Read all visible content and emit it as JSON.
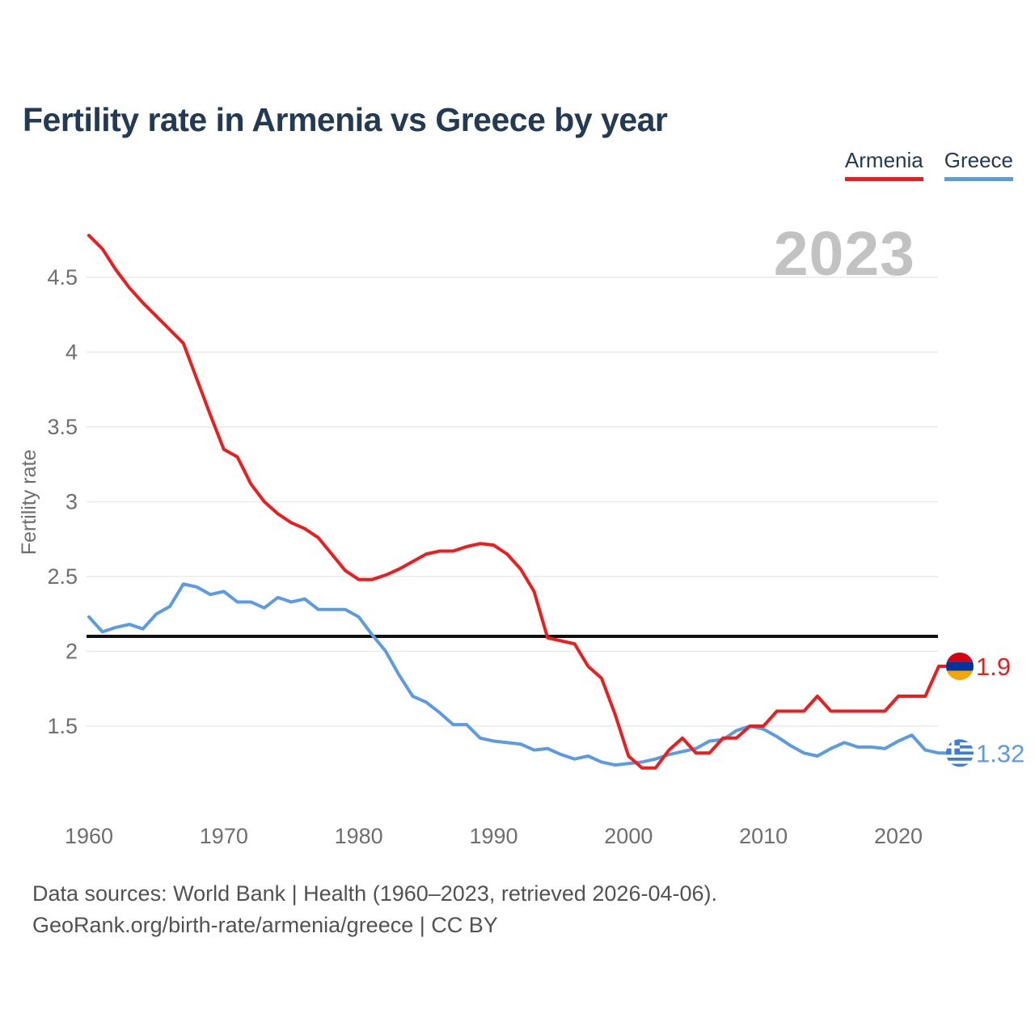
{
  "title": "Fertility rate in Armenia vs Greece by year",
  "legend": [
    {
      "label": "Armenia",
      "color": "#ee1c1c"
    },
    {
      "label": "Greece",
      "color": "#5b9be1"
    }
  ],
  "watermark": "2023",
  "end_labels": [
    {
      "series": "Armenia",
      "value": "1.9",
      "flag_icon": "armenia-flag-icon"
    },
    {
      "series": "Greece",
      "value": "1.32",
      "flag_icon": "greece-flag-icon"
    }
  ],
  "footer": {
    "line1": "Data sources: World Bank | Health (1960–2023, retrieved 2026-04-06).",
    "line2": "GeoRank.org/birth-rate/armenia/greece | CC BY"
  },
  "chart_data": {
    "type": "line",
    "title": "Fertility rate in Armenia vs Greece by year",
    "xlabel": "",
    "ylabel": "Fertility rate",
    "x": [
      1960,
      1961,
      1962,
      1963,
      1964,
      1965,
      1966,
      1967,
      1968,
      1969,
      1970,
      1971,
      1972,
      1973,
      1974,
      1975,
      1976,
      1977,
      1978,
      1979,
      1980,
      1981,
      1982,
      1983,
      1984,
      1985,
      1986,
      1987,
      1988,
      1989,
      1990,
      1991,
      1992,
      1993,
      1994,
      1995,
      1996,
      1997,
      1998,
      1999,
      2000,
      2001,
      2002,
      2003,
      2004,
      2005,
      2006,
      2007,
      2008,
      2009,
      2010,
      2011,
      2012,
      2013,
      2014,
      2015,
      2016,
      2017,
      2018,
      2019,
      2020,
      2021,
      2022,
      2023
    ],
    "series": [
      {
        "name": "Armenia",
        "color": "#ee1c1c",
        "values": [
          4.78,
          4.69,
          4.55,
          4.43,
          4.33,
          4.24,
          4.15,
          4.06,
          3.82,
          3.58,
          3.35,
          3.3,
          3.12,
          3.0,
          2.92,
          2.86,
          2.82,
          2.76,
          2.65,
          2.54,
          2.48,
          2.48,
          2.51,
          2.55,
          2.6,
          2.65,
          2.67,
          2.67,
          2.7,
          2.72,
          2.71,
          2.65,
          2.55,
          2.4,
          2.09,
          2.07,
          2.05,
          1.9,
          1.82,
          1.58,
          1.3,
          1.22,
          1.22,
          1.34,
          1.42,
          1.32,
          1.32,
          1.42,
          1.42,
          1.5,
          1.5,
          1.6,
          1.6,
          1.6,
          1.7,
          1.6,
          1.6,
          1.6,
          1.6,
          1.6,
          1.7,
          1.7,
          1.7,
          1.9
        ]
      },
      {
        "name": "Greece",
        "color": "#5b9be1",
        "values": [
          2.23,
          2.13,
          2.16,
          2.18,
          2.15,
          2.25,
          2.3,
          2.45,
          2.43,
          2.38,
          2.4,
          2.33,
          2.33,
          2.29,
          2.36,
          2.33,
          2.35,
          2.28,
          2.28,
          2.28,
          2.23,
          2.11,
          2.0,
          1.84,
          1.7,
          1.66,
          1.59,
          1.51,
          1.51,
          1.42,
          1.4,
          1.39,
          1.38,
          1.34,
          1.35,
          1.31,
          1.28,
          1.3,
          1.26,
          1.24,
          1.25,
          1.26,
          1.28,
          1.31,
          1.33,
          1.35,
          1.4,
          1.41,
          1.47,
          1.5,
          1.48,
          1.43,
          1.37,
          1.32,
          1.3,
          1.35,
          1.39,
          1.36,
          1.36,
          1.35,
          1.4,
          1.44,
          1.34,
          1.32
        ]
      }
    ],
    "yticks": [
      1.5,
      2,
      2.5,
      3,
      3.5,
      4,
      4.5
    ],
    "xticks": [
      1960,
      1970,
      1980,
      1990,
      2000,
      2010,
      2020
    ],
    "ylim": [
      1.1,
      4.9
    ],
    "xlim": [
      1960,
      2023
    ],
    "grid": "horizontal",
    "legend_position": "top-right",
    "replacement_line": {
      "value": 2.1,
      "color": "#101010"
    }
  }
}
